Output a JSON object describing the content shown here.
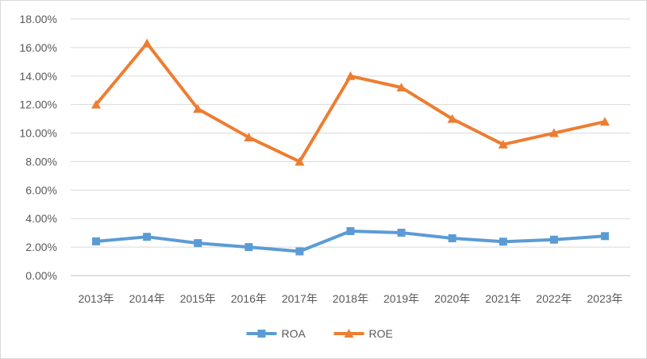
{
  "chart_data": {
    "type": "line",
    "title": "",
    "xlabel": "",
    "ylabel": "",
    "categories": [
      "2013年",
      "2014年",
      "2015年",
      "2016年",
      "2017年",
      "2018年",
      "2019年",
      "2020年",
      "2021年",
      "2022年",
      "2023年"
    ],
    "ylim": [
      0,
      0.18
    ],
    "yticks": [
      0,
      0.02,
      0.04,
      0.06,
      0.08,
      0.1,
      0.12,
      0.14,
      0.16,
      0.18
    ],
    "ytick_labels": [
      "0.00%",
      "2.00%",
      "4.00%",
      "6.00%",
      "8.00%",
      "10.00%",
      "12.00%",
      "14.00%",
      "16.00%",
      "18.00%"
    ],
    "grid": true,
    "legend_position": "bottom",
    "series": [
      {
        "name": "ROA",
        "color": "#5b9bd5",
        "marker": "square",
        "values": [
          0.024,
          0.0272,
          0.0228,
          0.02,
          0.017,
          0.0312,
          0.0301,
          0.0262,
          0.0238,
          0.0252,
          0.0277
        ]
      },
      {
        "name": "ROE",
        "color": "#ed7d31",
        "marker": "triangle",
        "values": [
          0.12,
          0.163,
          0.117,
          0.097,
          0.08,
          0.14,
          0.132,
          0.11,
          0.092,
          0.1,
          0.108
        ]
      }
    ]
  }
}
